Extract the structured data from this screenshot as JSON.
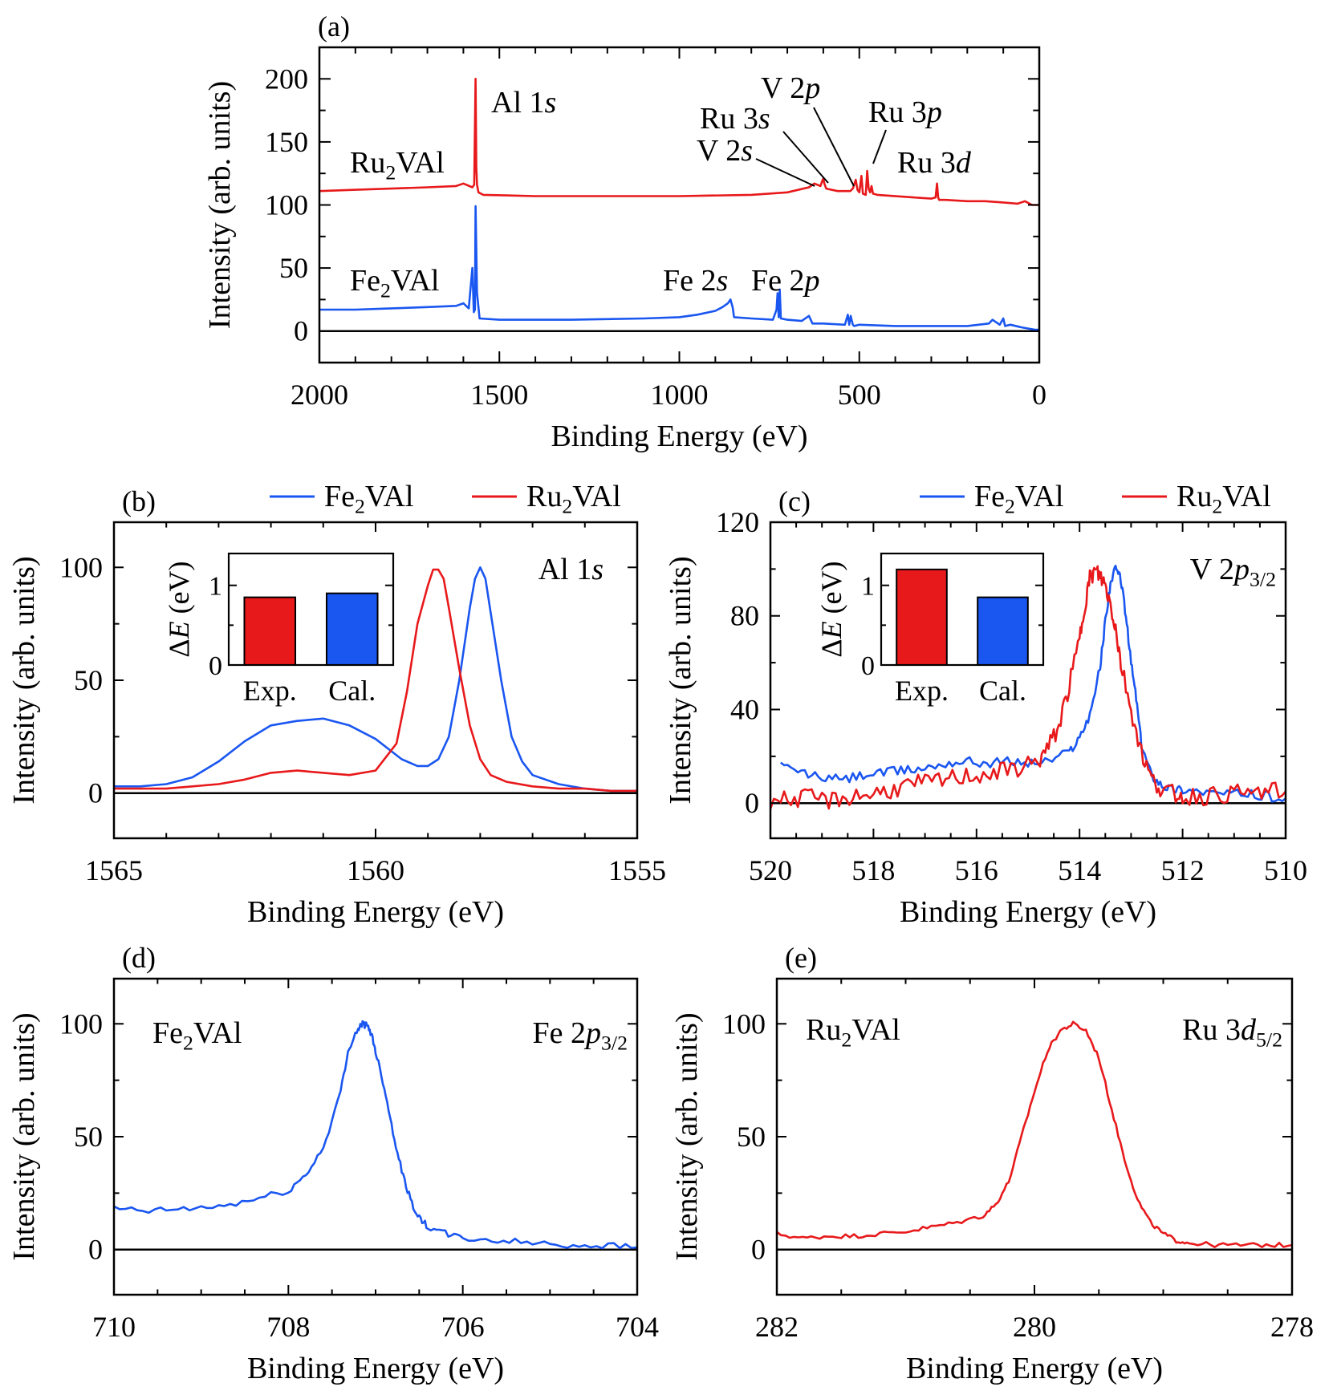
{
  "figure": {
    "panels": [
      "(a)",
      "(b)",
      "(c)",
      "(d)",
      "(e)"
    ]
  },
  "chart_data": [
    {
      "id": "a",
      "type": "line",
      "panel_label": "(a)",
      "xlabel": "Binding Energy (eV)",
      "ylabel": "Intensity (arb. units)",
      "xlim": [
        2000,
        0
      ],
      "ylim": [
        -25,
        225
      ],
      "xticks": [
        2000,
        1500,
        1000,
        500,
        0
      ],
      "yticks": [
        0,
        50,
        100,
        150,
        200
      ],
      "zero_line": true,
      "series": [
        {
          "name": "Ru2VAl",
          "color": "#e8191b",
          "x": [
            2000,
            1900,
            1800,
            1700,
            1620,
            1600,
            1575,
            1570,
            1566,
            1564,
            1562,
            1558,
            1545,
            1400,
            1200,
            1000,
            800,
            700,
            640,
            625,
            608,
            603,
            600,
            597,
            592,
            560,
            525,
            518,
            510,
            505,
            500,
            494,
            490,
            482,
            478,
            474,
            470,
            466,
            462,
            450,
            350,
            300,
            288,
            284,
            281,
            278,
            260,
            200,
            150,
            100,
            60,
            40,
            20,
            0
          ],
          "y": [
            111,
            112,
            113,
            114,
            115,
            117,
            114,
            116,
            200,
            130,
            116,
            110,
            108,
            107,
            107,
            107,
            108,
            110,
            114,
            117,
            115,
            119,
            121,
            117,
            113,
            111,
            111,
            113,
            120,
            112,
            110,
            123,
            109,
            108,
            127,
            113,
            110,
            115,
            109,
            108,
            106,
            105,
            106,
            117,
            106,
            104,
            104,
            103,
            103,
            102,
            101,
            103,
            100,
            100
          ]
        },
        {
          "name": "Fe2VAl",
          "color": "#1a56f0",
          "x": [
            2000,
            1900,
            1800,
            1700,
            1620,
            1600,
            1585,
            1575,
            1571,
            1568,
            1566,
            1562,
            1555,
            1500,
            1300,
            1100,
            1000,
            950,
            900,
            880,
            865,
            858,
            852,
            848,
            800,
            740,
            730,
            727,
            724,
            721,
            718,
            700,
            660,
            640,
            630,
            600,
            540,
            532,
            528,
            524,
            518,
            514,
            500,
            400,
            300,
            200,
            140,
            130,
            110,
            100,
            95,
            80,
            50,
            30,
            10,
            0
          ],
          "y": [
            17,
            17,
            18,
            19,
            20,
            22,
            18,
            50,
            15,
            17,
            99,
            30,
            10,
            9,
            9,
            10,
            11,
            13,
            16,
            19,
            22,
            25,
            19,
            11,
            10,
            9,
            17,
            30,
            11,
            33,
            10,
            9,
            8,
            12,
            6,
            6,
            5,
            13,
            5,
            12,
            5,
            4,
            5,
            4,
            4,
            4,
            6,
            9,
            5,
            10,
            4,
            5,
            3,
            2,
            1,
            1
          ]
        }
      ],
      "annotations": [
        {
          "text": "Al 1",
          "italic": "s"
        },
        {
          "text": "Ru",
          "sub": "2",
          "text2": "VAl"
        },
        {
          "text": "Fe",
          "sub": "2",
          "text2": "VAl"
        },
        {
          "text": "V 2",
          "italic": "p"
        },
        {
          "text": "Ru 3",
          "italic": "s"
        },
        {
          "text": "V 2",
          "italic": "s"
        },
        {
          "text": "Ru 3",
          "italic": "p"
        },
        {
          "text": "Ru 3",
          "italic": "d"
        },
        {
          "text": "Fe 2",
          "italic": "s"
        },
        {
          "text": "Fe 2",
          "italic": "p"
        }
      ]
    },
    {
      "id": "b",
      "type": "line",
      "panel_label": "(b)",
      "xlabel": "Binding Energy (eV)",
      "ylabel": "Intensity (arb. units)",
      "xlim": [
        1565,
        1555
      ],
      "ylim": [
        -20,
        120
      ],
      "xticks": [
        1565,
        1560,
        1555
      ],
      "yticks": [
        0,
        50,
        100
      ],
      "zero_line": true,
      "legend": {
        "position": "top",
        "entries": [
          "Fe2VAl",
          "Ru2VAl"
        ]
      },
      "core_level": {
        "text": "Al 1",
        "italic": "s"
      },
      "series": [
        {
          "name": "Fe2VAl",
          "color": "#1a56f0",
          "x": [
            1565,
            1564.5,
            1564,
            1563.5,
            1563,
            1562.5,
            1562,
            1561.5,
            1561,
            1560.5,
            1560,
            1559.5,
            1559.2,
            1559,
            1558.8,
            1558.6,
            1558.4,
            1558.2,
            1558.1,
            1558,
            1557.9,
            1557.8,
            1557.6,
            1557.4,
            1557.2,
            1557,
            1556.5,
            1556,
            1555.5,
            1555
          ],
          "y": [
            3,
            3,
            4,
            7,
            14,
            23,
            30,
            32,
            33,
            30,
            24,
            15,
            12,
            12,
            15,
            25,
            50,
            82,
            95,
            100,
            95,
            80,
            50,
            25,
            14,
            8,
            4,
            2,
            1,
            1
          ]
        },
        {
          "name": "Ru2VAl",
          "color": "#e8191b",
          "x": [
            1565,
            1564.5,
            1564,
            1563.5,
            1563,
            1562.5,
            1562,
            1561.5,
            1561,
            1560.5,
            1560,
            1559.6,
            1559.4,
            1559.2,
            1559,
            1558.9,
            1558.8,
            1558.7,
            1558.6,
            1558.4,
            1558.2,
            1558,
            1557.8,
            1557.5,
            1557,
            1556.5,
            1556,
            1555.5,
            1555
          ],
          "y": [
            2,
            2,
            2,
            3,
            4,
            6,
            9,
            10,
            9,
            8,
            10,
            22,
            45,
            75,
            92,
            99,
            99,
            95,
            82,
            55,
            30,
            15,
            8,
            5,
            3,
            2,
            2,
            1,
            1
          ]
        }
      ],
      "inset": {
        "ylabel": "ΔE (eV)",
        "ylim": [
          0,
          1.4
        ],
        "yticks": [
          0,
          1
        ],
        "categories": [
          "Exp.",
          "Cal."
        ],
        "values": [
          0.85,
          0.9
        ],
        "colors": [
          "#e8191b",
          "#1a56f0"
        ]
      }
    },
    {
      "id": "c",
      "type": "line",
      "panel_label": "(c)",
      "xlabel": "Binding Energy (eV)",
      "ylabel": "Intensity (arb. units)",
      "xlim": [
        520,
        510
      ],
      "ylim": [
        -15,
        120
      ],
      "xticks": [
        520,
        518,
        516,
        514,
        512,
        510
      ],
      "yticks": [
        0,
        40,
        80,
        120
      ],
      "zero_line": true,
      "legend": {
        "position": "top",
        "entries": [
          "Fe2VAl",
          "Ru2VAl"
        ]
      },
      "core_level": {
        "text": "V 2",
        "italic": "p",
        "sub": "3/2"
      },
      "series": [
        {
          "name": "Fe2VAl",
          "color": "#1a56f0",
          "x": [
            519.8,
            519.4,
            519,
            518.6,
            518.2,
            517.8,
            517.4,
            517,
            516.6,
            516.2,
            515.8,
            515.4,
            515,
            514.6,
            514.2,
            514,
            513.8,
            513.6,
            513.5,
            513.4,
            513.3,
            513.2,
            513.1,
            513,
            512.9,
            512.8,
            512.6,
            512.4,
            512.2,
            512,
            511.6,
            511.2,
            510.8,
            510.4,
            510
          ],
          "y": [
            16,
            13,
            11,
            10,
            12,
            13,
            14,
            15,
            17,
            18,
            17,
            18,
            17,
            18,
            22,
            28,
            38,
            58,
            78,
            94,
            100,
            96,
            80,
            60,
            45,
            25,
            12,
            8,
            6,
            6,
            5,
            4,
            4,
            3,
            2
          ],
          "noise": 2
        },
        {
          "name": "Ru2VAl",
          "color": "#e8191b",
          "x": [
            520,
            519.6,
            519.2,
            518.8,
            518.4,
            518,
            517.6,
            517.2,
            516.8,
            516.4,
            516,
            515.6,
            515.2,
            514.8,
            514.6,
            514.4,
            514.2,
            514,
            513.9,
            513.8,
            513.7,
            513.6,
            513.5,
            513.4,
            513.3,
            513.2,
            513,
            512.8,
            512.6,
            512.4,
            512.2,
            512,
            511.6,
            511.2,
            510.8,
            510.4,
            510
          ],
          "y": [
            1,
            2,
            2,
            1,
            3,
            4,
            6,
            8,
            9,
            11,
            12,
            13,
            15,
            18,
            24,
            33,
            50,
            70,
            85,
            96,
            99,
            97,
            93,
            85,
            75,
            60,
            40,
            22,
            10,
            6,
            4,
            3,
            3,
            4,
            4,
            5,
            5
          ],
          "noise": 4
        }
      ],
      "inset": {
        "ylabel": "ΔE (eV)",
        "ylim": [
          0,
          1.4
        ],
        "yticks": [
          0,
          1
        ],
        "categories": [
          "Exp.",
          "Cal."
        ],
        "values": [
          1.2,
          0.85
        ],
        "colors": [
          "#e8191b",
          "#1a56f0"
        ]
      }
    },
    {
      "id": "d",
      "type": "line",
      "panel_label": "(d)",
      "xlabel": "Binding Energy (eV)",
      "ylabel": "Intensity (arb. units)",
      "xlim": [
        710,
        704
      ],
      "ylim": [
        -20,
        120
      ],
      "xticks": [
        710,
        708,
        706,
        704
      ],
      "yticks": [
        0,
        50,
        100
      ],
      "zero_line": true,
      "sample_label": {
        "text": "Fe",
        "sub": "2",
        "text2": "VAl"
      },
      "core_level": {
        "text": "Fe 2",
        "italic": "p",
        "sub": "3/2"
      },
      "series": [
        {
          "name": "Fe2VAl",
          "color": "#1a56f0",
          "x": [
            710,
            709.6,
            709.2,
            708.8,
            708.4,
            708,
            707.8,
            707.6,
            707.4,
            707.3,
            707.2,
            707.15,
            707.1,
            707.05,
            707,
            706.9,
            706.8,
            706.7,
            706.6,
            706.5,
            706.4,
            706.2,
            706,
            705.6,
            705.2,
            704.8,
            704.4,
            704
          ],
          "y": [
            18,
            17,
            18,
            19,
            22,
            26,
            33,
            45,
            70,
            90,
            98,
            100,
            99,
            96,
            88,
            72,
            52,
            35,
            22,
            14,
            10,
            7,
            5,
            4,
            3,
            2,
            2,
            1
          ],
          "noise": 1.5
        }
      ]
    },
    {
      "id": "e",
      "type": "line",
      "panel_label": "(e)",
      "xlabel": "Binding Energy (eV)",
      "ylabel": "Intensity (arb. units)",
      "xlim": [
        282,
        278
      ],
      "ylim": [
        -20,
        120
      ],
      "xticks": [
        282,
        280,
        278
      ],
      "yticks": [
        0,
        50,
        100
      ],
      "zero_line": true,
      "sample_label": {
        "text": "Ru",
        "sub": "2",
        "text2": "VAl"
      },
      "core_level": {
        "text": "Ru 3",
        "italic": "d",
        "sub": "5/2"
      },
      "series": [
        {
          "name": "Ru2VAl",
          "color": "#e8191b",
          "x": [
            282,
            281.8,
            281.6,
            281.4,
            281.2,
            281,
            280.8,
            280.6,
            280.4,
            280.3,
            280.2,
            280.1,
            280,
            279.9,
            279.8,
            279.7,
            279.6,
            279.5,
            279.4,
            279.3,
            279.2,
            279.1,
            279,
            278.9,
            278.8,
            278.6,
            278.4,
            278.2,
            278
          ],
          "y": [
            7,
            5,
            6,
            6,
            7,
            8,
            10,
            12,
            15,
            20,
            30,
            50,
            70,
            88,
            97,
            100,
            97,
            85,
            62,
            40,
            22,
            12,
            7,
            4,
            3,
            2,
            2,
            2,
            2
          ],
          "noise": 1
        }
      ]
    }
  ]
}
